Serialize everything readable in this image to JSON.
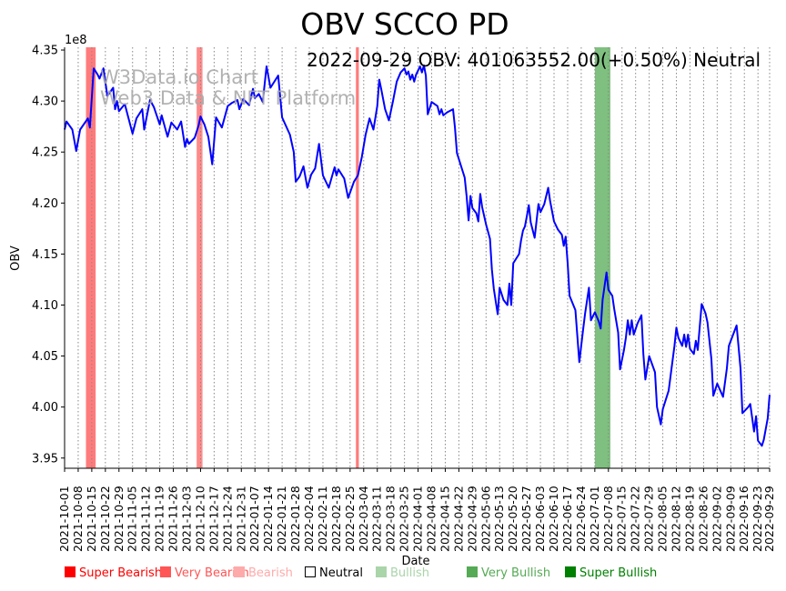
{
  "chart_data": {
    "type": "line",
    "title": "OBV SCCO PD",
    "annotation": "2022-09-29 OBV: 401063552.00(+0.50%) Neutral",
    "watermark": [
      "W3Data.io Chart",
      "Web3 Data & NFT Platform"
    ],
    "xlabel": "Date",
    "ylabel": "OBV",
    "y_scale_label": "1e8",
    "x_start_date": "2021-10-01",
    "x_range_days": [
      0,
      363
    ],
    "ylim": [
      3.94,
      4.3527
    ],
    "yticks": [
      "3.95",
      "4.00",
      "4.05",
      "4.10",
      "4.15",
      "4.20",
      "4.25",
      "4.30",
      "4.35"
    ],
    "xticks": [
      "2021-10-01",
      "2021-10-08",
      "2021-10-15",
      "2021-10-22",
      "2021-10-29",
      "2021-11-05",
      "2021-11-12",
      "2021-11-19",
      "2021-11-26",
      "2021-12-03",
      "2021-12-10",
      "2021-12-17",
      "2021-12-24",
      "2021-12-31",
      "2022-01-07",
      "2022-01-14",
      "2022-01-21",
      "2022-01-28",
      "2022-02-04",
      "2022-02-11",
      "2022-02-18",
      "2022-02-25",
      "2022-03-04",
      "2022-03-11",
      "2022-03-18",
      "2022-03-25",
      "2022-04-01",
      "2022-04-08",
      "2022-04-15",
      "2022-04-22",
      "2022-04-29",
      "2022-05-06",
      "2022-05-13",
      "2022-05-20",
      "2022-05-27",
      "2022-06-03",
      "2022-06-10",
      "2022-06-17",
      "2022-06-24",
      "2022-07-01",
      "2022-07-08",
      "2022-07-15",
      "2022-07-22",
      "2022-07-29",
      "2022-08-05",
      "2022-08-12",
      "2022-08-19",
      "2022-08-26",
      "2022-09-02",
      "2022-09-09",
      "2022-09-16",
      "2022-09-23",
      "2022-09-29"
    ],
    "series": [
      {
        "name": "OBV",
        "color": "#0000ff",
        "points_day_value": [
          [
            0,
            4.272
          ],
          [
            1,
            4.28
          ],
          [
            4,
            4.272
          ],
          [
            6,
            4.251
          ],
          [
            8,
            4.272
          ],
          [
            12,
            4.283
          ],
          [
            13,
            4.274
          ],
          [
            15,
            4.332
          ],
          [
            17,
            4.326
          ],
          [
            18,
            4.322
          ],
          [
            20,
            4.332
          ],
          [
            22,
            4.305
          ],
          [
            25,
            4.313
          ],
          [
            26,
            4.292
          ],
          [
            27,
            4.3
          ],
          [
            28,
            4.29
          ],
          [
            31,
            4.297
          ],
          [
            35,
            4.268
          ],
          [
            37,
            4.283
          ],
          [
            40,
            4.292
          ],
          [
            41,
            4.272
          ],
          [
            44,
            4.301
          ],
          [
            46,
            4.294
          ],
          [
            49,
            4.277
          ],
          [
            50,
            4.286
          ],
          [
            52,
            4.272
          ],
          [
            53,
            4.265
          ],
          [
            55,
            4.279
          ],
          [
            58,
            4.272
          ],
          [
            60,
            4.28
          ],
          [
            62,
            4.255
          ],
          [
            63,
            4.263
          ],
          [
            64,
            4.258
          ],
          [
            67,
            4.264
          ],
          [
            69,
            4.276
          ],
          [
            70,
            4.285
          ],
          [
            72,
            4.277
          ],
          [
            74,
            4.265
          ],
          [
            76,
            4.238
          ],
          [
            78,
            4.284
          ],
          [
            81,
            4.274
          ],
          [
            84,
            4.295
          ],
          [
            86,
            4.298
          ],
          [
            89,
            4.301
          ],
          [
            90,
            4.292
          ],
          [
            92,
            4.302
          ],
          [
            95,
            4.296
          ],
          [
            97,
            4.312
          ],
          [
            98,
            4.303
          ],
          [
            100,
            4.307
          ],
          [
            102,
            4.299
          ],
          [
            104,
            4.334
          ],
          [
            106,
            4.313
          ],
          [
            110,
            4.325
          ],
          [
            112,
            4.284
          ],
          [
            116,
            4.267
          ],
          [
            118,
            4.25
          ],
          [
            119,
            4.221
          ],
          [
            121,
            4.226
          ],
          [
            123,
            4.236
          ],
          [
            125,
            4.215
          ],
          [
            127,
            4.228
          ],
          [
            129,
            4.234
          ],
          [
            131,
            4.258
          ],
          [
            133,
            4.227
          ],
          [
            136,
            4.215
          ],
          [
            139,
            4.235
          ],
          [
            140,
            4.227
          ],
          [
            141,
            4.233
          ],
          [
            144,
            4.224
          ],
          [
            146,
            4.205
          ],
          [
            149,
            4.221
          ],
          [
            151,
            4.227
          ],
          [
            153,
            4.245
          ],
          [
            155,
            4.267
          ],
          [
            157,
            4.283
          ],
          [
            159,
            4.272
          ],
          [
            161,
            4.295
          ],
          [
            162,
            4.321
          ],
          [
            163,
            4.312
          ],
          [
            165,
            4.292
          ],
          [
            167,
            4.281
          ],
          [
            169,
            4.299
          ],
          [
            171,
            4.319
          ],
          [
            173,
            4.328
          ],
          [
            175,
            4.332
          ],
          [
            176,
            4.326
          ],
          [
            177,
            4.329
          ],
          [
            178,
            4.321
          ],
          [
            179,
            4.326
          ],
          [
            180,
            4.319
          ],
          [
            181,
            4.326
          ],
          [
            182,
            4.33
          ],
          [
            183,
            4.334
          ],
          [
            184,
            4.328
          ],
          [
            185,
            4.335
          ],
          [
            186,
            4.325
          ],
          [
            187,
            4.287
          ],
          [
            189,
            4.299
          ],
          [
            192,
            4.295
          ],
          [
            193,
            4.287
          ],
          [
            194,
            4.292
          ],
          [
            195,
            4.286
          ],
          [
            197,
            4.289
          ],
          [
            200,
            4.292
          ],
          [
            201,
            4.274
          ],
          [
            202,
            4.249
          ],
          [
            206,
            4.225
          ],
          [
            207,
            4.207
          ],
          [
            208,
            4.183
          ],
          [
            209,
            4.207
          ],
          [
            210,
            4.195
          ],
          [
            212,
            4.19
          ],
          [
            213,
            4.182
          ],
          [
            214,
            4.209
          ],
          [
            215,
            4.196
          ],
          [
            217,
            4.179
          ],
          [
            219,
            4.165
          ],
          [
            220,
            4.135
          ],
          [
            221,
            4.116
          ],
          [
            223,
            4.091
          ],
          [
            224,
            4.117
          ],
          [
            226,
            4.105
          ],
          [
            228,
            4.1
          ],
          [
            229,
            4.121
          ],
          [
            230,
            4.1
          ],
          [
            231,
            4.141
          ],
          [
            234,
            4.15
          ],
          [
            235,
            4.163
          ],
          [
            236,
            4.173
          ],
          [
            237,
            4.177
          ],
          [
            238,
            4.187
          ],
          [
            239,
            4.198
          ],
          [
            240,
            4.181
          ],
          [
            242,
            4.166
          ],
          [
            244,
            4.199
          ],
          [
            245,
            4.191
          ],
          [
            247,
            4.199
          ],
          [
            249,
            4.215
          ],
          [
            250,
            4.202
          ],
          [
            252,
            4.182
          ],
          [
            254,
            4.174
          ],
          [
            256,
            4.169
          ],
          [
            257,
            4.158
          ],
          [
            258,
            4.167
          ],
          [
            259,
            4.141
          ],
          [
            260,
            4.109
          ],
          [
            263,
            4.095
          ],
          [
            265,
            4.044
          ],
          [
            267,
            4.076
          ],
          [
            268,
            4.092
          ],
          [
            270,
            4.117
          ],
          [
            271,
            4.085
          ],
          [
            273,
            4.093
          ],
          [
            275,
            4.084
          ],
          [
            276,
            4.077
          ],
          [
            277,
            4.105
          ],
          [
            279,
            4.132
          ],
          [
            280,
            4.115
          ],
          [
            282,
            4.109
          ],
          [
            283,
            4.096
          ],
          [
            285,
            4.073
          ],
          [
            286,
            4.037
          ],
          [
            288,
            4.056
          ],
          [
            289,
            4.068
          ],
          [
            290,
            4.085
          ],
          [
            291,
            4.071
          ],
          [
            292,
            4.085
          ],
          [
            293,
            4.071
          ],
          [
            295,
            4.082
          ],
          [
            297,
            4.09
          ],
          [
            298,
            4.052
          ],
          [
            299,
            4.027
          ],
          [
            301,
            4.05
          ],
          [
            304,
            4.034
          ],
          [
            305,
            4.0
          ],
          [
            307,
            3.983
          ],
          [
            308,
            3.998
          ],
          [
            311,
            4.016
          ],
          [
            314,
            4.06
          ],
          [
            315,
            4.078
          ],
          [
            316,
            4.068
          ],
          [
            318,
            4.06
          ],
          [
            319,
            4.071
          ],
          [
            320,
            4.059
          ],
          [
            321,
            4.071
          ],
          [
            322,
            4.057
          ],
          [
            324,
            4.052
          ],
          [
            325,
            4.065
          ],
          [
            326,
            4.056
          ],
          [
            328,
            4.101
          ],
          [
            330,
            4.092
          ],
          [
            331,
            4.083
          ],
          [
            333,
            4.047
          ],
          [
            334,
            4.011
          ],
          [
            336,
            4.023
          ],
          [
            339,
            4.01
          ],
          [
            341,
            4.038
          ],
          [
            342,
            4.06
          ],
          [
            346,
            4.08
          ],
          [
            348,
            4.038
          ],
          [
            349,
            3.994
          ],
          [
            352,
            4.0
          ],
          [
            353,
            4.003
          ],
          [
            355,
            3.976
          ],
          [
            356,
            3.991
          ],
          [
            357,
            3.967
          ],
          [
            359,
            3.962
          ],
          [
            360,
            3.968
          ],
          [
            362,
            3.989
          ],
          [
            363,
            4.012
          ]
        ]
      }
    ],
    "bands": [
      {
        "label": "Very Bearish",
        "start_day": 11,
        "end_day": 16,
        "color": "#ff7b7b"
      },
      {
        "label": "Very Bearish",
        "start_day": 68,
        "end_day": 71,
        "color": "#ff8a8a"
      },
      {
        "label": "Very Bearish",
        "start_day": 150,
        "end_day": 151.5,
        "color": "#ff7b7b"
      },
      {
        "label": "Very Bullish",
        "start_day": 273,
        "end_day": 281,
        "color": "#7fbf7f"
      }
    ],
    "grid": "vertical dotted",
    "legend_position": "bottom",
    "legend": [
      {
        "label": "Super Bearish",
        "color": "#ff0000",
        "hollow": false
      },
      {
        "label": "Very Bearish",
        "color": "#ff5555",
        "hollow": false
      },
      {
        "label": "Bearish",
        "color": "#ffaaaa",
        "hollow": false
      },
      {
        "label": "Neutral",
        "color": "#000000",
        "hollow": true
      },
      {
        "label": "Bullish",
        "color": "#aad4aa",
        "hollow": false
      },
      {
        "label": "Very Bullish",
        "color": "#55aa55",
        "hollow": false
      },
      {
        "label": "Super Bullish",
        "color": "#008000",
        "hollow": false
      }
    ]
  }
}
